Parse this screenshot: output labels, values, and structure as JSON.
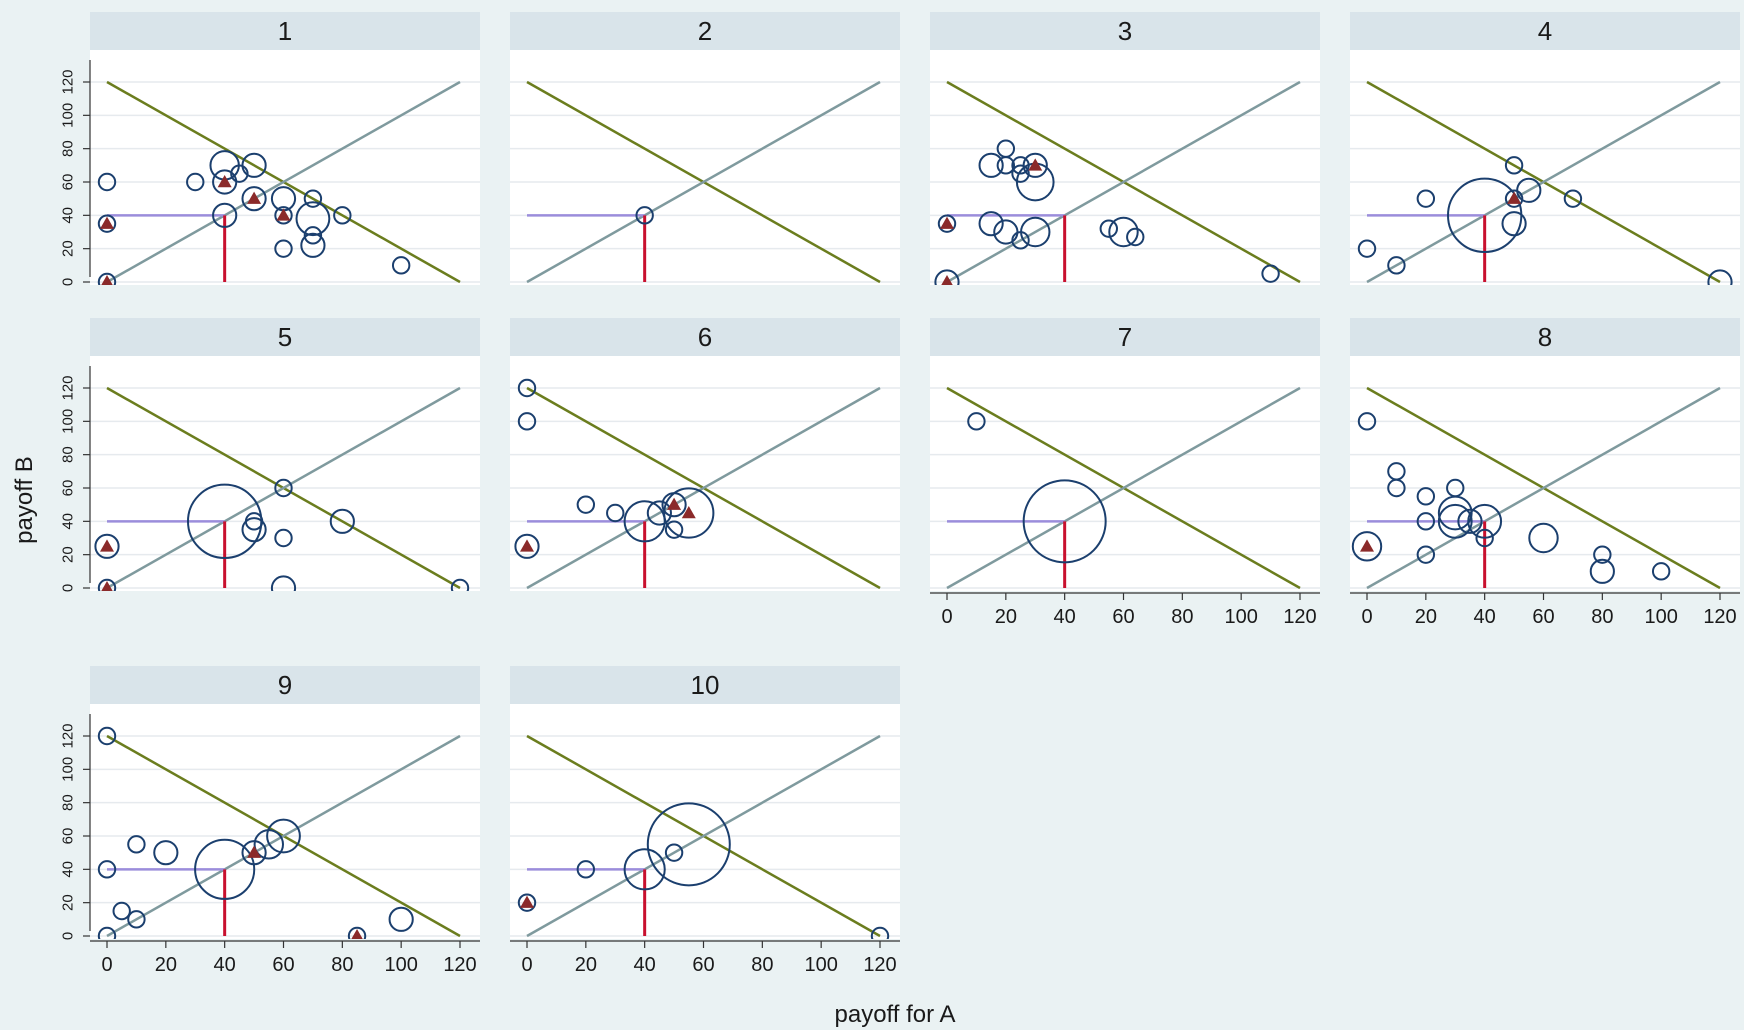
{
  "figure": {
    "xlabel": "payoff for A",
    "ylabel": "payoff B",
    "x_ticks": [
      0,
      20,
      40,
      60,
      80,
      100,
      120
    ],
    "y_ticks": [
      0,
      20,
      40,
      60,
      80,
      100,
      120
    ],
    "colors": {
      "background": "#eaf2f3",
      "panel_bg": "#ffffff",
      "strip_bg": "#d9e4ea",
      "grid": "#e6eaee",
      "circle": "#1b3f6e",
      "triangle": "#8b2a2a",
      "line_decreasing": "#6b7d1e",
      "line_increasing": "#7f9a9e",
      "ref_horizontal": "#9b8ddb",
      "ref_vertical": "#c8102e"
    }
  },
  "chart_data": [
    {
      "type": "scatter",
      "title": "1",
      "xlim": [
        0,
        120
      ],
      "ylim": [
        0,
        120
      ],
      "lines": [
        {
          "x": [
            0,
            120
          ],
          "y": [
            120,
            0
          ]
        },
        {
          "x": [
            0,
            120
          ],
          "y": [
            0,
            120
          ]
        }
      ],
      "reference": {
        "x": 40,
        "y": 40
      },
      "circles": [
        {
          "x": 0,
          "y": 60,
          "size": 1
        },
        {
          "x": 0,
          "y": 35,
          "size": 1
        },
        {
          "x": 0,
          "y": 0,
          "size": 1
        },
        {
          "x": 30,
          "y": 60,
          "size": 1
        },
        {
          "x": 40,
          "y": 70,
          "size": 3
        },
        {
          "x": 40,
          "y": 60,
          "size": 2
        },
        {
          "x": 45,
          "y": 65,
          "size": 1
        },
        {
          "x": 50,
          "y": 70,
          "size": 2
        },
        {
          "x": 50,
          "y": 50,
          "size": 2
        },
        {
          "x": 40,
          "y": 40,
          "size": 2
        },
        {
          "x": 60,
          "y": 50,
          "size": 2
        },
        {
          "x": 60,
          "y": 40,
          "size": 1
        },
        {
          "x": 60,
          "y": 20,
          "size": 1
        },
        {
          "x": 70,
          "y": 50,
          "size": 1
        },
        {
          "x": 70,
          "y": 38,
          "size": 4
        },
        {
          "x": 70,
          "y": 28,
          "size": 1
        },
        {
          "x": 70,
          "y": 22,
          "size": 2
        },
        {
          "x": 80,
          "y": 40,
          "size": 1
        },
        {
          "x": 100,
          "y": 10,
          "size": 1
        }
      ],
      "triangles": [
        {
          "x": 0,
          "y": 35
        },
        {
          "x": 0,
          "y": 0
        },
        {
          "x": 40,
          "y": 60
        },
        {
          "x": 50,
          "y": 50
        },
        {
          "x": 60,
          "y": 40
        }
      ]
    },
    {
      "type": "scatter",
      "title": "2",
      "xlim": [
        0,
        120
      ],
      "ylim": [
        0,
        120
      ],
      "lines": [
        {
          "x": [
            0,
            120
          ],
          "y": [
            120,
            0
          ]
        },
        {
          "x": [
            0,
            120
          ],
          "y": [
            0,
            120
          ]
        }
      ],
      "reference": {
        "x": 40,
        "y": 40
      },
      "circles": [
        {
          "x": 40,
          "y": 40,
          "size": 1
        }
      ],
      "triangles": []
    },
    {
      "type": "scatter",
      "title": "3",
      "xlim": [
        0,
        120
      ],
      "ylim": [
        0,
        120
      ],
      "lines": [
        {
          "x": [
            0,
            120
          ],
          "y": [
            120,
            0
          ]
        },
        {
          "x": [
            0,
            120
          ],
          "y": [
            0,
            120
          ]
        }
      ],
      "reference": {
        "x": 40,
        "y": 40
      },
      "circles": [
        {
          "x": 0,
          "y": 35,
          "size": 1
        },
        {
          "x": 0,
          "y": 0,
          "size": 2
        },
        {
          "x": 15,
          "y": 70,
          "size": 2
        },
        {
          "x": 20,
          "y": 80,
          "size": 1
        },
        {
          "x": 20,
          "y": 70,
          "size": 1
        },
        {
          "x": 25,
          "y": 70,
          "size": 1
        },
        {
          "x": 25,
          "y": 65,
          "size": 1
        },
        {
          "x": 30,
          "y": 70,
          "size": 2
        },
        {
          "x": 30,
          "y": 60,
          "size": 5
        },
        {
          "x": 15,
          "y": 35,
          "size": 2
        },
        {
          "x": 20,
          "y": 30,
          "size": 2
        },
        {
          "x": 25,
          "y": 25,
          "size": 1
        },
        {
          "x": 30,
          "y": 30,
          "size": 3
        },
        {
          "x": 55,
          "y": 32,
          "size": 1
        },
        {
          "x": 60,
          "y": 30,
          "size": 3
        },
        {
          "x": 64,
          "y": 27,
          "size": 1
        },
        {
          "x": 110,
          "y": 5,
          "size": 1
        }
      ],
      "triangles": [
        {
          "x": 0,
          "y": 35
        },
        {
          "x": 0,
          "y": 0
        },
        {
          "x": 30,
          "y": 70
        }
      ]
    },
    {
      "type": "scatter",
      "title": "4",
      "xlim": [
        0,
        120
      ],
      "ylim": [
        0,
        120
      ],
      "lines": [
        {
          "x": [
            0,
            120
          ],
          "y": [
            120,
            0
          ]
        },
        {
          "x": [
            0,
            120
          ],
          "y": [
            0,
            120
          ]
        }
      ],
      "reference": {
        "x": 40,
        "y": 40
      },
      "circles": [
        {
          "x": 0,
          "y": 20,
          "size": 1
        },
        {
          "x": 10,
          "y": 10,
          "size": 1
        },
        {
          "x": 20,
          "y": 50,
          "size": 1
        },
        {
          "x": 40,
          "y": 40,
          "size": 20
        },
        {
          "x": 50,
          "y": 70,
          "size": 1
        },
        {
          "x": 50,
          "y": 50,
          "size": 1
        },
        {
          "x": 55,
          "y": 55,
          "size": 2
        },
        {
          "x": 50,
          "y": 35,
          "size": 2
        },
        {
          "x": 70,
          "y": 50,
          "size": 1
        },
        {
          "x": 120,
          "y": 0,
          "size": 2
        }
      ],
      "triangles": [
        {
          "x": 50,
          "y": 50
        }
      ]
    },
    {
      "type": "scatter",
      "title": "5",
      "xlim": [
        0,
        120
      ],
      "ylim": [
        0,
        120
      ],
      "lines": [
        {
          "x": [
            0,
            120
          ],
          "y": [
            120,
            0
          ]
        },
        {
          "x": [
            0,
            120
          ],
          "y": [
            0,
            120
          ]
        }
      ],
      "reference": {
        "x": 40,
        "y": 40
      },
      "circles": [
        {
          "x": 0,
          "y": 25,
          "size": 2
        },
        {
          "x": 0,
          "y": 0,
          "size": 1
        },
        {
          "x": 40,
          "y": 40,
          "size": 20
        },
        {
          "x": 50,
          "y": 40,
          "size": 1
        },
        {
          "x": 50,
          "y": 35,
          "size": 2
        },
        {
          "x": 60,
          "y": 60,
          "size": 1
        },
        {
          "x": 60,
          "y": 30,
          "size": 1
        },
        {
          "x": 60,
          "y": 0,
          "size": 2
        },
        {
          "x": 80,
          "y": 40,
          "size": 2
        },
        {
          "x": 120,
          "y": 0,
          "size": 1
        }
      ],
      "triangles": [
        {
          "x": 0,
          "y": 25
        },
        {
          "x": 0,
          "y": 0
        }
      ]
    },
    {
      "type": "scatter",
      "title": "6",
      "xlim": [
        0,
        120
      ],
      "ylim": [
        0,
        120
      ],
      "lines": [
        {
          "x": [
            0,
            120
          ],
          "y": [
            120,
            0
          ]
        },
        {
          "x": [
            0,
            120
          ],
          "y": [
            0,
            120
          ]
        }
      ],
      "reference": {
        "x": 40,
        "y": 40
      },
      "circles": [
        {
          "x": 0,
          "y": 120,
          "size": 1
        },
        {
          "x": 0,
          "y": 100,
          "size": 1
        },
        {
          "x": 0,
          "y": 25,
          "size": 2
        },
        {
          "x": 20,
          "y": 50,
          "size": 1
        },
        {
          "x": 30,
          "y": 45,
          "size": 1
        },
        {
          "x": 40,
          "y": 40,
          "size": 6
        },
        {
          "x": 45,
          "y": 45,
          "size": 2
        },
        {
          "x": 50,
          "y": 50,
          "size": 2
        },
        {
          "x": 50,
          "y": 35,
          "size": 1
        },
        {
          "x": 55,
          "y": 45,
          "size": 9
        }
      ],
      "triangles": [
        {
          "x": 0,
          "y": 25
        },
        {
          "x": 50,
          "y": 50
        },
        {
          "x": 55,
          "y": 45
        }
      ]
    },
    {
      "type": "scatter",
      "title": "7",
      "xlim": [
        0,
        120
      ],
      "ylim": [
        0,
        120
      ],
      "lines": [
        {
          "x": [
            0,
            120
          ],
          "y": [
            120,
            0
          ]
        },
        {
          "x": [
            0,
            120
          ],
          "y": [
            0,
            120
          ]
        }
      ],
      "reference": {
        "x": 40,
        "y": 40
      },
      "circles": [
        {
          "x": 10,
          "y": 100,
          "size": 1
        },
        {
          "x": 40,
          "y": 40,
          "size": 25
        }
      ],
      "triangles": []
    },
    {
      "type": "scatter",
      "title": "8",
      "xlim": [
        0,
        120
      ],
      "ylim": [
        0,
        120
      ],
      "lines": [
        {
          "x": [
            0,
            120
          ],
          "y": [
            120,
            0
          ]
        },
        {
          "x": [
            0,
            120
          ],
          "y": [
            0,
            120
          ]
        }
      ],
      "reference": {
        "x": 40,
        "y": 40
      },
      "circles": [
        {
          "x": 0,
          "y": 100,
          "size": 1
        },
        {
          "x": 0,
          "y": 25,
          "size": 3
        },
        {
          "x": 10,
          "y": 70,
          "size": 1
        },
        {
          "x": 10,
          "y": 60,
          "size": 1
        },
        {
          "x": 20,
          "y": 55,
          "size": 1
        },
        {
          "x": 20,
          "y": 40,
          "size": 1
        },
        {
          "x": 20,
          "y": 20,
          "size": 1
        },
        {
          "x": 30,
          "y": 60,
          "size": 1
        },
        {
          "x": 30,
          "y": 45,
          "size": 4
        },
        {
          "x": 30,
          "y": 40,
          "size": 4
        },
        {
          "x": 35,
          "y": 40,
          "size": 2
        },
        {
          "x": 40,
          "y": 40,
          "size": 4
        },
        {
          "x": 40,
          "y": 30,
          "size": 1
        },
        {
          "x": 60,
          "y": 30,
          "size": 3
        },
        {
          "x": 80,
          "y": 20,
          "size": 1
        },
        {
          "x": 80,
          "y": 10,
          "size": 2
        },
        {
          "x": 100,
          "y": 10,
          "size": 1
        }
      ],
      "triangles": [
        {
          "x": 0,
          "y": 25
        }
      ]
    },
    {
      "type": "scatter",
      "title": "9",
      "xlim": [
        0,
        120
      ],
      "ylim": [
        0,
        120
      ],
      "lines": [
        {
          "x": [
            0,
            120
          ],
          "y": [
            120,
            0
          ]
        },
        {
          "x": [
            0,
            120
          ],
          "y": [
            0,
            120
          ]
        }
      ],
      "reference": {
        "x": 40,
        "y": 40
      },
      "circles": [
        {
          "x": 0,
          "y": 120,
          "size": 1
        },
        {
          "x": 0,
          "y": 40,
          "size": 1
        },
        {
          "x": 0,
          "y": 0,
          "size": 1
        },
        {
          "x": 5,
          "y": 15,
          "size": 1
        },
        {
          "x": 10,
          "y": 55,
          "size": 1
        },
        {
          "x": 10,
          "y": 10,
          "size": 1
        },
        {
          "x": 20,
          "y": 50,
          "size": 2
        },
        {
          "x": 40,
          "y": 40,
          "size": 13
        },
        {
          "x": 50,
          "y": 50,
          "size": 2
        },
        {
          "x": 55,
          "y": 55,
          "size": 3
        },
        {
          "x": 60,
          "y": 60,
          "size": 4
        },
        {
          "x": 85,
          "y": 0,
          "size": 1
        },
        {
          "x": 100,
          "y": 10,
          "size": 2
        }
      ],
      "triangles": [
        {
          "x": 50,
          "y": 50
        },
        {
          "x": 85,
          "y": 0
        }
      ]
    },
    {
      "type": "scatter",
      "title": "10",
      "xlim": [
        0,
        120
      ],
      "ylim": [
        0,
        120
      ],
      "lines": [
        {
          "x": [
            0,
            120
          ],
          "y": [
            120,
            0
          ]
        },
        {
          "x": [
            0,
            120
          ],
          "y": [
            0,
            120
          ]
        }
      ],
      "reference": {
        "x": 40,
        "y": 40
      },
      "circles": [
        {
          "x": 0,
          "y": 20,
          "size": 1
        },
        {
          "x": 20,
          "y": 40,
          "size": 1
        },
        {
          "x": 40,
          "y": 40,
          "size": 6
        },
        {
          "x": 50,
          "y": 50,
          "size": 1
        },
        {
          "x": 55,
          "y": 55,
          "size": 25
        },
        {
          "x": 120,
          "y": 0,
          "size": 1
        }
      ],
      "triangles": [
        {
          "x": 0,
          "y": 20
        }
      ]
    }
  ]
}
